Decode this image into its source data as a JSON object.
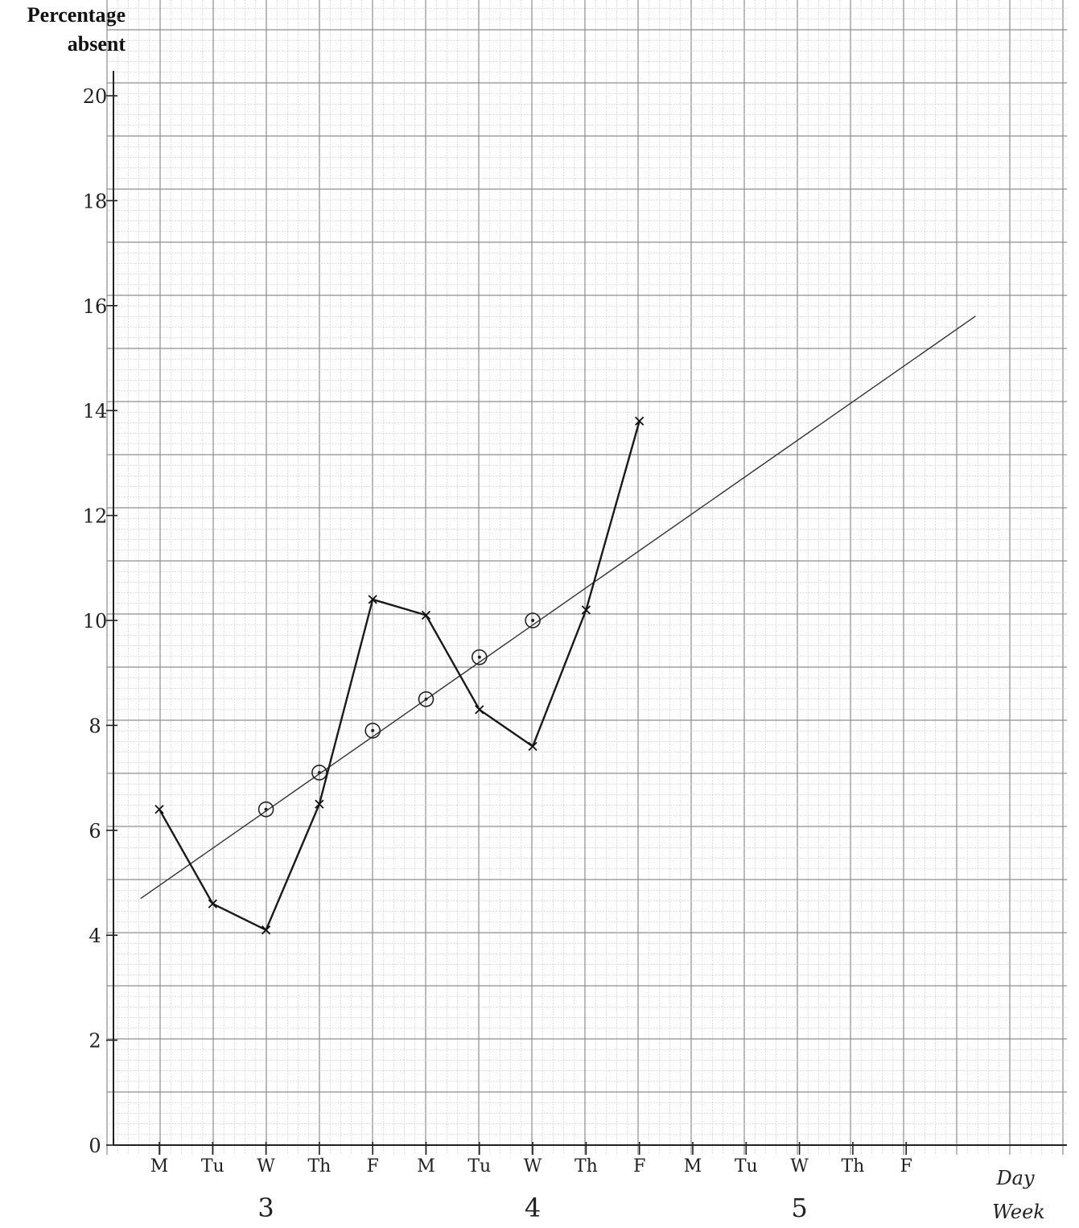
{
  "chart_data": {
    "type": "line",
    "ylabel_lines": [
      "Percentage",
      "absent"
    ],
    "y_ticks": [
      0,
      2,
      4,
      6,
      8,
      10,
      12,
      14,
      16,
      18,
      20
    ],
    "ylim": [
      0,
      20.5
    ],
    "x_days": [
      "M",
      "Tu",
      "W",
      "Th",
      "F",
      "M",
      "Tu",
      "W",
      "Th",
      "F",
      "M",
      "Tu",
      "W",
      "Th",
      "F"
    ],
    "x_day_label": "Day",
    "weeks": [
      {
        "label": "3",
        "center_index": 2
      },
      {
        "label": "4",
        "center_index": 7
      },
      {
        "label": "5",
        "center_index": 12
      }
    ],
    "x_week_label": "Week",
    "grid": true,
    "series": [
      {
        "marker": "cross",
        "x": [
          0,
          1,
          2,
          3,
          4,
          5,
          6,
          7,
          8,
          9
        ],
        "values": [
          6.4,
          4.6,
          4.1,
          6.5,
          10.4,
          10.1,
          8.3,
          7.6,
          10.2,
          13.8
        ]
      },
      {
        "marker": "circle-dot",
        "x": [
          2,
          3,
          4,
          5,
          6,
          7
        ],
        "values": [
          6.4,
          7.1,
          7.9,
          8.5,
          9.3,
          10.0
        ]
      }
    ],
    "trend_line": {
      "x": [
        -0.35,
        15.3
      ],
      "y": [
        4.7,
        15.8
      ]
    }
  }
}
